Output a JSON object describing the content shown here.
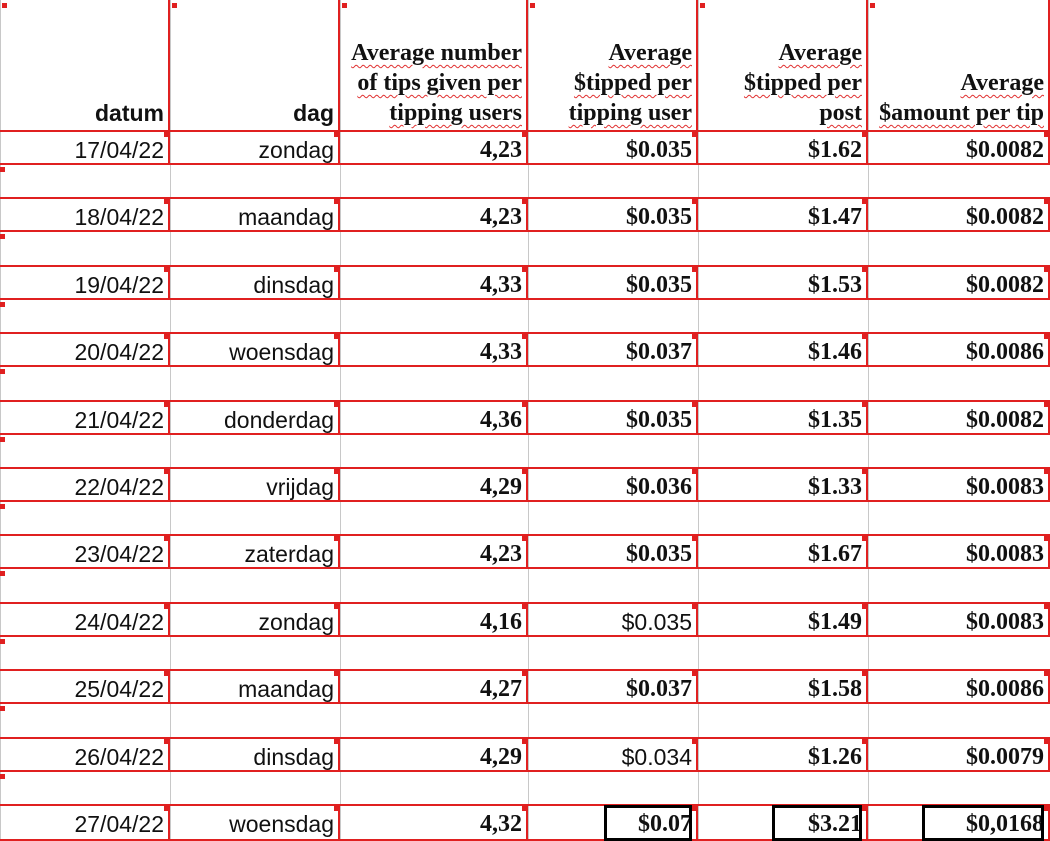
{
  "table": {
    "header": [
      "datum",
      "dag",
      "Average number of tips given per tipping users",
      "Average $tipped per tipping user",
      "Average $tipped per post",
      "Average $amount per tip"
    ],
    "rows": [
      [
        "17/04/22",
        "zondag",
        "4,23",
        "$0.035",
        "$1.62",
        "$0.0082"
      ],
      [
        "18/04/22",
        "maandag",
        "4,23",
        "$0.035",
        "$1.47",
        "$0.0082"
      ],
      [
        "19/04/22",
        "dinsdag",
        "4,33",
        "$0.035",
        "$1.53",
        "$0.0082"
      ],
      [
        "20/04/22",
        "woensdag",
        "4,33",
        "$0.037",
        "$1.46",
        "$0.0086"
      ],
      [
        "21/04/22",
        "donderdag",
        "4,36",
        "$0.035",
        "$1.35",
        "$0.0082"
      ],
      [
        "22/04/22",
        "vrijdag",
        "4,29",
        "$0.036",
        "$1.33",
        "$0.0083"
      ],
      [
        "23/04/22",
        "zaterdag",
        "4,23",
        "$0.035",
        "$1.67",
        "$0.0083"
      ],
      [
        "24/04/22",
        "zondag",
        "4,16",
        "$0.035",
        "$1.49",
        "$0.0083"
      ],
      [
        "25/04/22",
        "maandag",
        "4,27",
        "$0.037",
        "$1.58",
        "$0.0086"
      ],
      [
        "26/04/22",
        "dinsdag",
        "4,29",
        "$0.034",
        "$1.26",
        "$0.0079"
      ],
      [
        "27/04/22",
        "woensdag",
        "4,32",
        "$0.07",
        "$3.21",
        "$0,0168"
      ]
    ]
  }
}
